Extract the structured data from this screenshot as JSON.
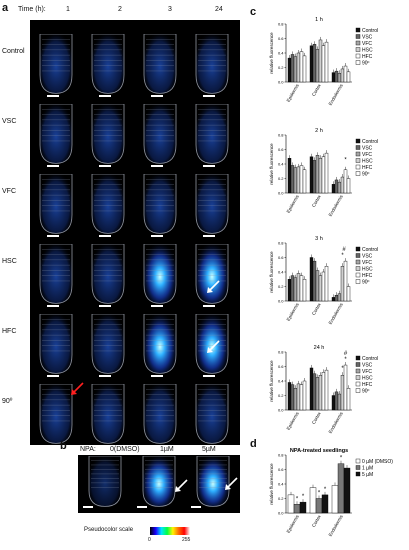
{
  "panel_a": {
    "letter": "a",
    "time_label": "Time (h):",
    "times": [
      "1",
      "2",
      "3",
      "24"
    ],
    "rows": [
      "Control",
      "VSC",
      "VFC",
      "HSC",
      "HFC",
      "90º"
    ]
  },
  "panel_b": {
    "letter": "b",
    "npa_label": "NPA:",
    "conditions": [
      "0(DMSO)",
      "1µM",
      "5µM"
    ],
    "scale_label": "Pseudocolor scale",
    "scale_min": "0",
    "scale_max": "255"
  },
  "panel_c": {
    "letter": "c"
  },
  "panel_d": {
    "letter": "d"
  },
  "chart_data": [
    {
      "type": "bar",
      "title": "1 h",
      "ylabel": "relative fluorescence",
      "categories": [
        "Epidermis",
        "Cortex",
        "Endodermis"
      ],
      "ylim": [
        0,
        0.8
      ],
      "yticks": [
        "0.8",
        "0.6",
        "0.4",
        "0.2",
        "0.0"
      ],
      "series": [
        {
          "name": "Control",
          "values": [
            0.33,
            0.5,
            0.13
          ]
        },
        {
          "name": "VSC",
          "values": [
            0.38,
            0.52,
            0.15
          ]
        },
        {
          "name": "VFC",
          "values": [
            0.35,
            0.45,
            0.12
          ]
        },
        {
          "name": "HSC",
          "values": [
            0.4,
            0.58,
            0.18
          ]
        },
        {
          "name": "HFC",
          "values": [
            0.42,
            0.5,
            0.22
          ]
        },
        {
          "name": "90º",
          "values": [
            0.36,
            0.55,
            0.14
          ]
        }
      ]
    },
    {
      "type": "bar",
      "title": "2 h",
      "ylabel": "relative fluorescence",
      "categories": [
        "Epidermis",
        "Cortex",
        "Endodermis"
      ],
      "ylim": [
        0,
        0.8
      ],
      "yticks": [
        "0.8",
        "0.6",
        "0.4",
        "0.2",
        "0.0"
      ],
      "annotations": [
        "*"
      ],
      "series": [
        {
          "name": "Control",
          "values": [
            0.48,
            0.5,
            0.12
          ]
        },
        {
          "name": "VSC",
          "values": [
            0.38,
            0.45,
            0.18
          ]
        },
        {
          "name": "VFC",
          "values": [
            0.35,
            0.52,
            0.15
          ]
        },
        {
          "name": "HSC",
          "values": [
            0.36,
            0.48,
            0.22
          ]
        },
        {
          "name": "HFC",
          "values": [
            0.38,
            0.5,
            0.32
          ]
        },
        {
          "name": "90º",
          "values": [
            0.32,
            0.55,
            0.2
          ]
        }
      ]
    },
    {
      "type": "bar",
      "title": "3 h",
      "ylabel": "relative fluorescence",
      "categories": [
        "Epidermis",
        "Cortex",
        "Endodermis"
      ],
      "ylim": [
        0,
        0.8
      ],
      "yticks": [
        "0.8",
        "0.6",
        "0.4",
        "0.2",
        "0.0"
      ],
      "annotations": [
        "#",
        "*"
      ],
      "series": [
        {
          "name": "Control",
          "values": [
            0.3,
            0.6,
            0.05
          ]
        },
        {
          "name": "VSC",
          "values": [
            0.35,
            0.55,
            0.08
          ]
        },
        {
          "name": "VFC",
          "values": [
            0.32,
            0.42,
            0.1
          ]
        },
        {
          "name": "HSC",
          "values": [
            0.38,
            0.35,
            0.48
          ]
        },
        {
          "name": "HFC",
          "values": [
            0.35,
            0.4,
            0.55
          ]
        },
        {
          "name": "90º",
          "values": [
            0.3,
            0.48,
            0.2
          ]
        }
      ]
    },
    {
      "type": "bar",
      "title": "24 h",
      "ylabel": "relative fluorescence",
      "categories": [
        "Epidermis",
        "Cortex",
        "Endodermis"
      ],
      "ylim": [
        0,
        0.8
      ],
      "yticks": [
        "0.8",
        "0.6",
        "0.4",
        "0.2",
        "0.0"
      ],
      "annotations": [
        "#",
        "*",
        "*"
      ],
      "series": [
        {
          "name": "Control",
          "values": [
            0.38,
            0.58,
            0.2
          ]
        },
        {
          "name": "VSC",
          "values": [
            0.35,
            0.5,
            0.25
          ]
        },
        {
          "name": "VFC",
          "values": [
            0.3,
            0.45,
            0.22
          ]
        },
        {
          "name": "HSC",
          "values": [
            0.36,
            0.48,
            0.48
          ]
        },
        {
          "name": "HFC",
          "values": [
            0.35,
            0.52,
            0.62
          ]
        },
        {
          "name": "90º",
          "values": [
            0.4,
            0.55,
            0.3
          ]
        }
      ]
    },
    {
      "type": "bar",
      "title": "NPA-treated seedlings",
      "ylabel": "relative fluorescence",
      "categories": [
        "Epidermis",
        "Cortex",
        "Endodermis"
      ],
      "ylim": [
        0,
        0.8
      ],
      "yticks": [
        "0.8",
        "0.6",
        "0.4",
        "0.2",
        "0.0"
      ],
      "annotations": [
        "*",
        "*",
        "*",
        "*",
        "*"
      ],
      "series": [
        {
          "name": "0 µM (DMSO)",
          "values": [
            0.25,
            0.35,
            0.38
          ]
        },
        {
          "name": "1 µM",
          "values": [
            0.12,
            0.2,
            0.68
          ]
        },
        {
          "name": "5 µM",
          "values": [
            0.15,
            0.25,
            0.62
          ]
        }
      ]
    }
  ]
}
